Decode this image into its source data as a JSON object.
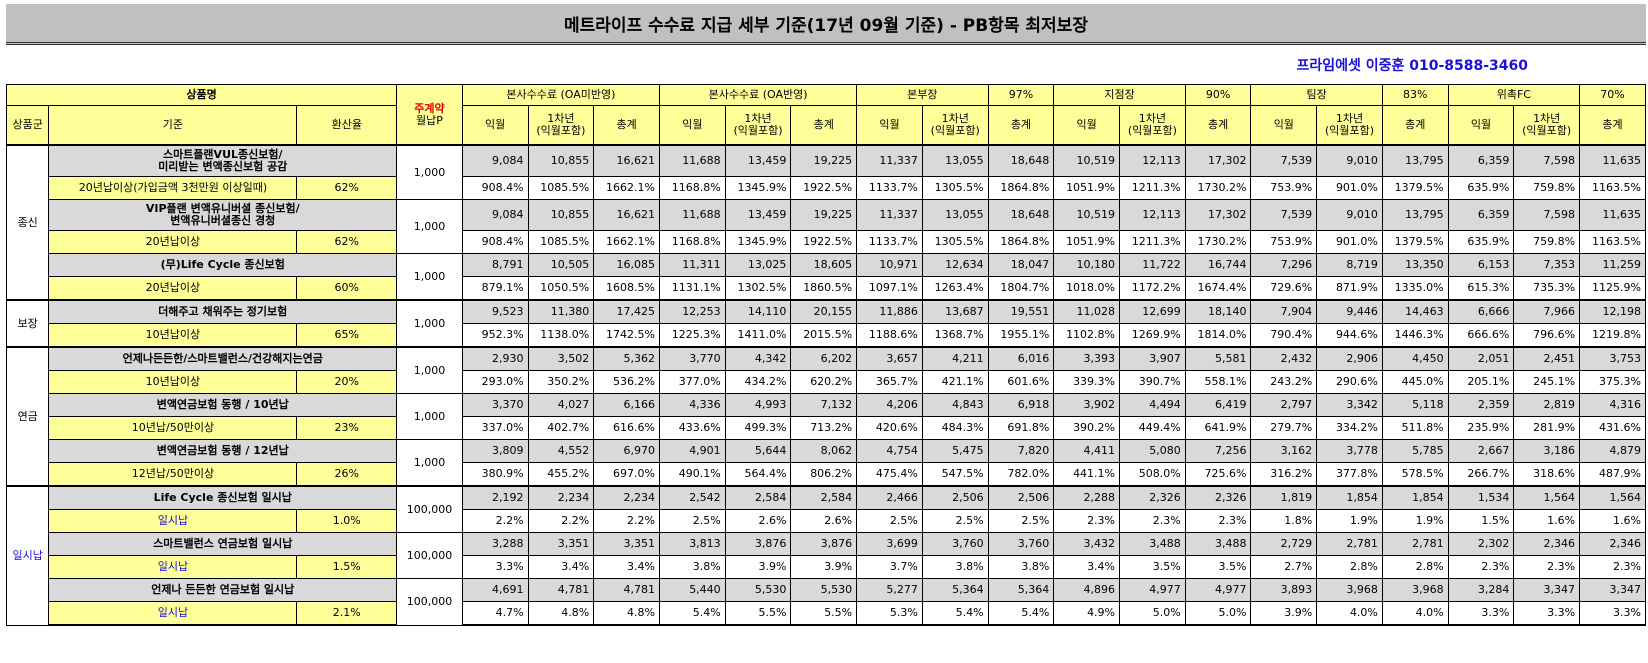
{
  "title": "메트라이프 수수료 지급 세부 기준(17년 09월 기준) - PB항목 최저보장",
  "contact": "프라임에셋 이중훈 010-8588-3460",
  "headers": {
    "product_name": "상품명",
    "contract_line1": "주계약",
    "contract_line2": "월납P",
    "group": "상품군",
    "criteria": "기준",
    "conversion": "환산율",
    "sub_cols": [
      "익월",
      "1차년",
      "(익월포함)",
      "총계"
    ],
    "sections": [
      {
        "label": "본사수수료 (OA미반영)",
        "pct": ""
      },
      {
        "label": "본사수수료 (OA반영)",
        "pct": ""
      },
      {
        "label": "본부장",
        "pct": "97%"
      },
      {
        "label": "지점장",
        "pct": "90%"
      },
      {
        "label": "팀장",
        "pct": "83%"
      },
      {
        "label": "위촉FC",
        "pct": "70%"
      }
    ]
  },
  "groups": [
    {
      "name": "종신",
      "products": [
        {
          "name": [
            "스마트플랜VUL종신보험/",
            "미리받는 변액종신보험 공감"
          ],
          "criteria": "20년납이상(가입금액 3천만원 이상일때)",
          "rate": "62%",
          "premium": "1,000",
          "amounts": [
            "9,084",
            "10,855",
            "16,621",
            "11,688",
            "13,459",
            "19,225",
            "11,337",
            "13,055",
            "18,648",
            "10,519",
            "12,113",
            "17,302",
            "7,539",
            "9,010",
            "13,795",
            "6,359",
            "7,598",
            "11,635"
          ],
          "percents": [
            "908.4%",
            "1085.5%",
            "1662.1%",
            "1168.8%",
            "1345.9%",
            "1922.5%",
            "1133.7%",
            "1305.5%",
            "1864.8%",
            "1051.9%",
            "1211.3%",
            "1730.2%",
            "753.9%",
            "901.0%",
            "1379.5%",
            "635.9%",
            "759.8%",
            "1163.5%"
          ]
        },
        {
          "name": [
            "VIP플랜 변액유니버셜 종신보험/",
            "변액유니버셜종신 경청"
          ],
          "criteria": "20년납이상",
          "rate": "62%",
          "premium": "1,000",
          "amounts": [
            "9,084",
            "10,855",
            "16,621",
            "11,688",
            "13,459",
            "19,225",
            "11,337",
            "13,055",
            "18,648",
            "10,519",
            "12,113",
            "17,302",
            "7,539",
            "9,010",
            "13,795",
            "6,359",
            "7,598",
            "11,635"
          ],
          "percents": [
            "908.4%",
            "1085.5%",
            "1662.1%",
            "1168.8%",
            "1345.9%",
            "1922.5%",
            "1133.7%",
            "1305.5%",
            "1864.8%",
            "1051.9%",
            "1211.3%",
            "1730.2%",
            "753.9%",
            "901.0%",
            "1379.5%",
            "635.9%",
            "759.8%",
            "1163.5%"
          ]
        },
        {
          "name": [
            "(무)Life Cycle 종신보험"
          ],
          "criteria": "20년납이상",
          "rate": "60%",
          "premium": "1,000",
          "amounts": [
            "8,791",
            "10,505",
            "16,085",
            "11,311",
            "13,025",
            "18,605",
            "10,971",
            "12,634",
            "18,047",
            "10,180",
            "11,722",
            "16,744",
            "7,296",
            "8,719",
            "13,350",
            "6,153",
            "7,353",
            "11,259"
          ],
          "percents": [
            "879.1%",
            "1050.5%",
            "1608.5%",
            "1131.1%",
            "1302.5%",
            "1860.5%",
            "1097.1%",
            "1263.4%",
            "1804.7%",
            "1018.0%",
            "1172.2%",
            "1674.4%",
            "729.6%",
            "871.9%",
            "1335.0%",
            "615.3%",
            "735.3%",
            "1125.9%"
          ]
        }
      ]
    },
    {
      "name": "보장",
      "products": [
        {
          "name": [
            "더해주고 채워주는 정기보험"
          ],
          "criteria": "10년납이상",
          "rate": "65%",
          "premium": "1,000",
          "amounts": [
            "9,523",
            "11,380",
            "17,425",
            "12,253",
            "14,110",
            "20,155",
            "11,886",
            "13,687",
            "19,551",
            "11,028",
            "12,699",
            "18,140",
            "7,904",
            "9,446",
            "14,463",
            "6,666",
            "7,966",
            "12,198"
          ],
          "percents": [
            "952.3%",
            "1138.0%",
            "1742.5%",
            "1225.3%",
            "1411.0%",
            "2015.5%",
            "1188.6%",
            "1368.7%",
            "1955.1%",
            "1102.8%",
            "1269.9%",
            "1814.0%",
            "790.4%",
            "944.6%",
            "1446.3%",
            "666.6%",
            "796.6%",
            "1219.8%"
          ]
        }
      ]
    },
    {
      "name": "연금",
      "products": [
        {
          "name": [
            "언제나든든한/스마트밸런스/건강해지는연금"
          ],
          "criteria": "10년납이상",
          "rate": "20%",
          "premium": "1,000",
          "amounts": [
            "2,930",
            "3,502",
            "5,362",
            "3,770",
            "4,342",
            "6,202",
            "3,657",
            "4,211",
            "6,016",
            "3,393",
            "3,907",
            "5,581",
            "2,432",
            "2,906",
            "4,450",
            "2,051",
            "2,451",
            "3,753"
          ],
          "percents": [
            "293.0%",
            "350.2%",
            "536.2%",
            "377.0%",
            "434.2%",
            "620.2%",
            "365.7%",
            "421.1%",
            "601.6%",
            "339.3%",
            "390.7%",
            "558.1%",
            "243.2%",
            "290.6%",
            "445.0%",
            "205.1%",
            "245.1%",
            "375.3%"
          ]
        },
        {
          "name": [
            "변액연금보험 동행 / 10년납"
          ],
          "criteria": "10년납/50만이상",
          "rate": "23%",
          "premium": "1,000",
          "amounts": [
            "3,370",
            "4,027",
            "6,166",
            "4,336",
            "4,993",
            "7,132",
            "4,206",
            "4,843",
            "6,918",
            "3,902",
            "4,494",
            "6,419",
            "2,797",
            "3,342",
            "5,118",
            "2,359",
            "2,819",
            "4,316"
          ],
          "percents": [
            "337.0%",
            "402.7%",
            "616.6%",
            "433.6%",
            "499.3%",
            "713.2%",
            "420.6%",
            "484.3%",
            "691.8%",
            "390.2%",
            "449.4%",
            "641.9%",
            "279.7%",
            "334.2%",
            "511.8%",
            "235.9%",
            "281.9%",
            "431.6%"
          ]
        },
        {
          "name": [
            "변액연금보험 동행 / 12년납"
          ],
          "criteria": "12년납/50만이상",
          "rate": "26%",
          "premium": "1,000",
          "amounts": [
            "3,809",
            "4,552",
            "6,970",
            "4,901",
            "5,644",
            "8,062",
            "4,754",
            "5,475",
            "7,820",
            "4,411",
            "5,080",
            "7,256",
            "3,162",
            "3,778",
            "5,785",
            "2,667",
            "3,186",
            "4,879"
          ],
          "percents": [
            "380.9%",
            "455.2%",
            "697.0%",
            "490.1%",
            "564.4%",
            "806.2%",
            "475.4%",
            "547.5%",
            "782.0%",
            "441.1%",
            "508.0%",
            "725.6%",
            "316.2%",
            "377.8%",
            "578.5%",
            "266.7%",
            "318.6%",
            "487.9%"
          ]
        }
      ]
    },
    {
      "name": "일시납",
      "products": [
        {
          "name": [
            "Life Cycle 종신보험 일시납"
          ],
          "criteria": "일시납",
          "rate": "1.0%",
          "premium": "100,000",
          "amounts": [
            "2,192",
            "2,234",
            "2,234",
            "2,542",
            "2,584",
            "2,584",
            "2,466",
            "2,506",
            "2,506",
            "2,288",
            "2,326",
            "2,326",
            "1,819",
            "1,854",
            "1,854",
            "1,534",
            "1,564",
            "1,564"
          ],
          "percents": [
            "2.2%",
            "2.2%",
            "2.2%",
            "2.5%",
            "2.6%",
            "2.6%",
            "2.5%",
            "2.5%",
            "2.5%",
            "2.3%",
            "2.3%",
            "2.3%",
            "1.8%",
            "1.9%",
            "1.9%",
            "1.5%",
            "1.6%",
            "1.6%"
          ]
        },
        {
          "name": [
            "스마트밸런스 연금보험 일시납"
          ],
          "criteria": "일시납",
          "rate": "1.5%",
          "premium": "100,000",
          "amounts": [
            "3,288",
            "3,351",
            "3,351",
            "3,813",
            "3,876",
            "3,876",
            "3,699",
            "3,760",
            "3,760",
            "3,432",
            "3,488",
            "3,488",
            "2,729",
            "2,781",
            "2,781",
            "2,302",
            "2,346",
            "2,346"
          ],
          "percents": [
            "3.3%",
            "3.4%",
            "3.4%",
            "3.8%",
            "3.9%",
            "3.9%",
            "3.7%",
            "3.8%",
            "3.8%",
            "3.4%",
            "3.5%",
            "3.5%",
            "2.7%",
            "2.8%",
            "2.8%",
            "2.3%",
            "2.3%",
            "2.3%"
          ]
        },
        {
          "name": [
            "언제나 든든한 연금보험 일시납"
          ],
          "criteria": "일시납",
          "rate": "2.1%",
          "premium": "100,000",
          "amounts": [
            "4,691",
            "4,781",
            "4,781",
            "5,440",
            "5,530",
            "5,530",
            "5,277",
            "5,364",
            "5,364",
            "4,896",
            "4,977",
            "4,977",
            "3,893",
            "3,968",
            "3,968",
            "3,284",
            "3,347",
            "3,347"
          ],
          "percents": [
            "4.7%",
            "4.8%",
            "4.8%",
            "5.4%",
            "5.5%",
            "5.5%",
            "5.3%",
            "5.4%",
            "5.4%",
            "4.9%",
            "5.0%",
            "5.0%",
            "3.9%",
            "4.0%",
            "4.0%",
            "3.3%",
            "3.3%",
            "3.3%"
          ]
        }
      ]
    }
  ]
}
